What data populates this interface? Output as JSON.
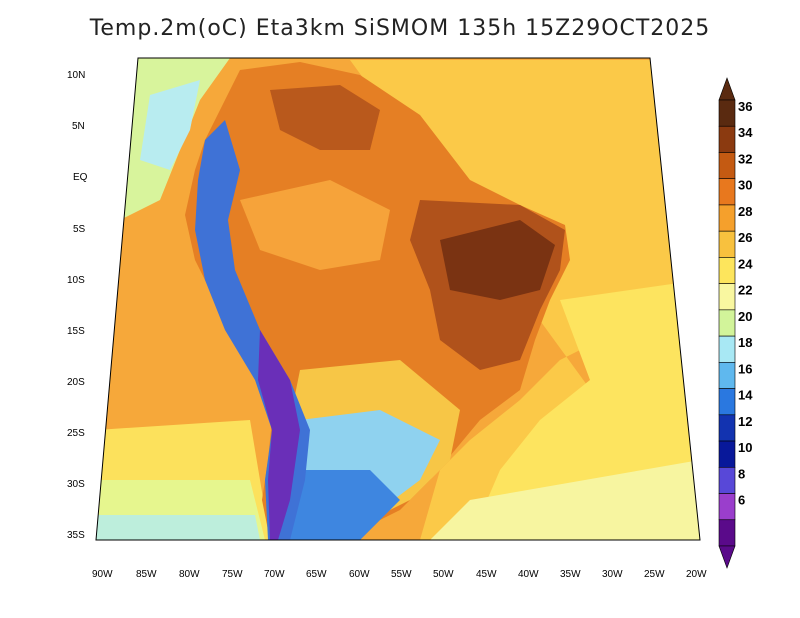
{
  "title": "Temp.2m(oC) Eta3km SiSMOM 135h 15Z29OCT2025",
  "lat_labels": [
    "10N",
    "5N",
    "EQ",
    "5S",
    "10S",
    "15S",
    "20S",
    "25S",
    "30S",
    "35S"
  ],
  "lon_labels": [
    "90W",
    "85W",
    "80W",
    "75W",
    "70W",
    "65W",
    "60W",
    "55W",
    "50W",
    "45W",
    "40W",
    "35W",
    "30W",
    "25W",
    "20W"
  ],
  "colorbar": {
    "labels": [
      "36",
      "34",
      "32",
      "30",
      "28",
      "26",
      "24",
      "22",
      "20",
      "18",
      "16",
      "14",
      "12",
      "10",
      "8",
      "6"
    ],
    "colors": [
      "#5a2a10",
      "#8b3a10",
      "#c45a12",
      "#e8781e",
      "#f5a02c",
      "#f8c13e",
      "#fde55c",
      "#f9f7a0",
      "#d2f49a",
      "#a8e8f4",
      "#5fb8ee",
      "#2a78e0",
      "#1233b0",
      "#08189a",
      "#5848d8",
      "#9a3ecc",
      "#5a0a8a"
    ]
  },
  "colors": {
    "ocean_warm": "#f6b041",
    "ocean_mid": "#fddf62",
    "ocean_cool": "#f5f7a0",
    "hot_brown": "#b5531a",
    "warm_orange": "#e07a25",
    "andes_blue": "#3a7ad9",
    "andes_purple": "#7a3acb"
  }
}
